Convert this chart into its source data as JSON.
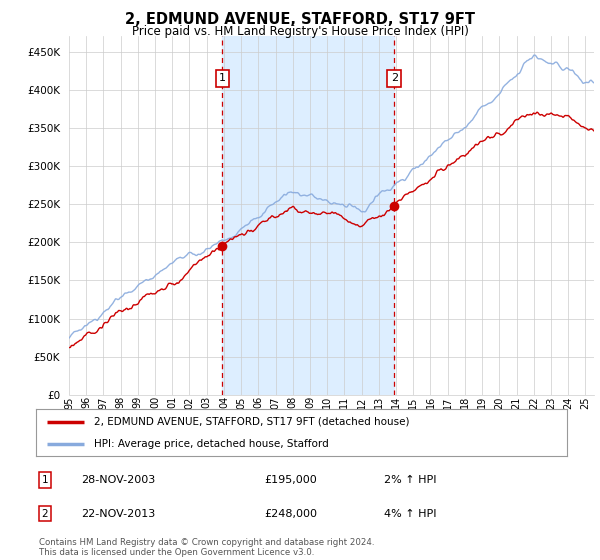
{
  "title": "2, EDMUND AVENUE, STAFFORD, ST17 9FT",
  "subtitle": "Price paid vs. HM Land Registry's House Price Index (HPI)",
  "ytick_values": [
    0,
    50000,
    100000,
    150000,
    200000,
    250000,
    300000,
    350000,
    400000,
    450000
  ],
  "ylim": [
    0,
    470000
  ],
  "xlim_start": 1995.0,
  "xlim_end": 2025.5,
  "transaction1": {
    "year": 2003.91,
    "price": 195000,
    "label": "1",
    "date": "28-NOV-2003",
    "hpi_pct": "2%"
  },
  "transaction2": {
    "year": 2013.9,
    "price": 248000,
    "label": "2",
    "date": "22-NOV-2013",
    "hpi_pct": "4%"
  },
  "hpi_line_color": "#88aadd",
  "price_line_color": "#cc0000",
  "shaded_region_color": "#ddeeff",
  "grid_color": "#cccccc",
  "background_color": "#ffffff",
  "legend_label1": "2, EDMUND AVENUE, STAFFORD, ST17 9FT (detached house)",
  "legend_label2": "HPI: Average price, detached house, Stafford",
  "footer": "Contains HM Land Registry data © Crown copyright and database right 2024.\nThis data is licensed under the Open Government Licence v3.0.",
  "transaction_rows": [
    {
      "num": "1",
      "date": "28-NOV-2003",
      "price": "£195,000",
      "hpi": "2% ↑ HPI"
    },
    {
      "num": "2",
      "date": "22-NOV-2013",
      "price": "£248,000",
      "hpi": "4% ↑ HPI"
    }
  ]
}
